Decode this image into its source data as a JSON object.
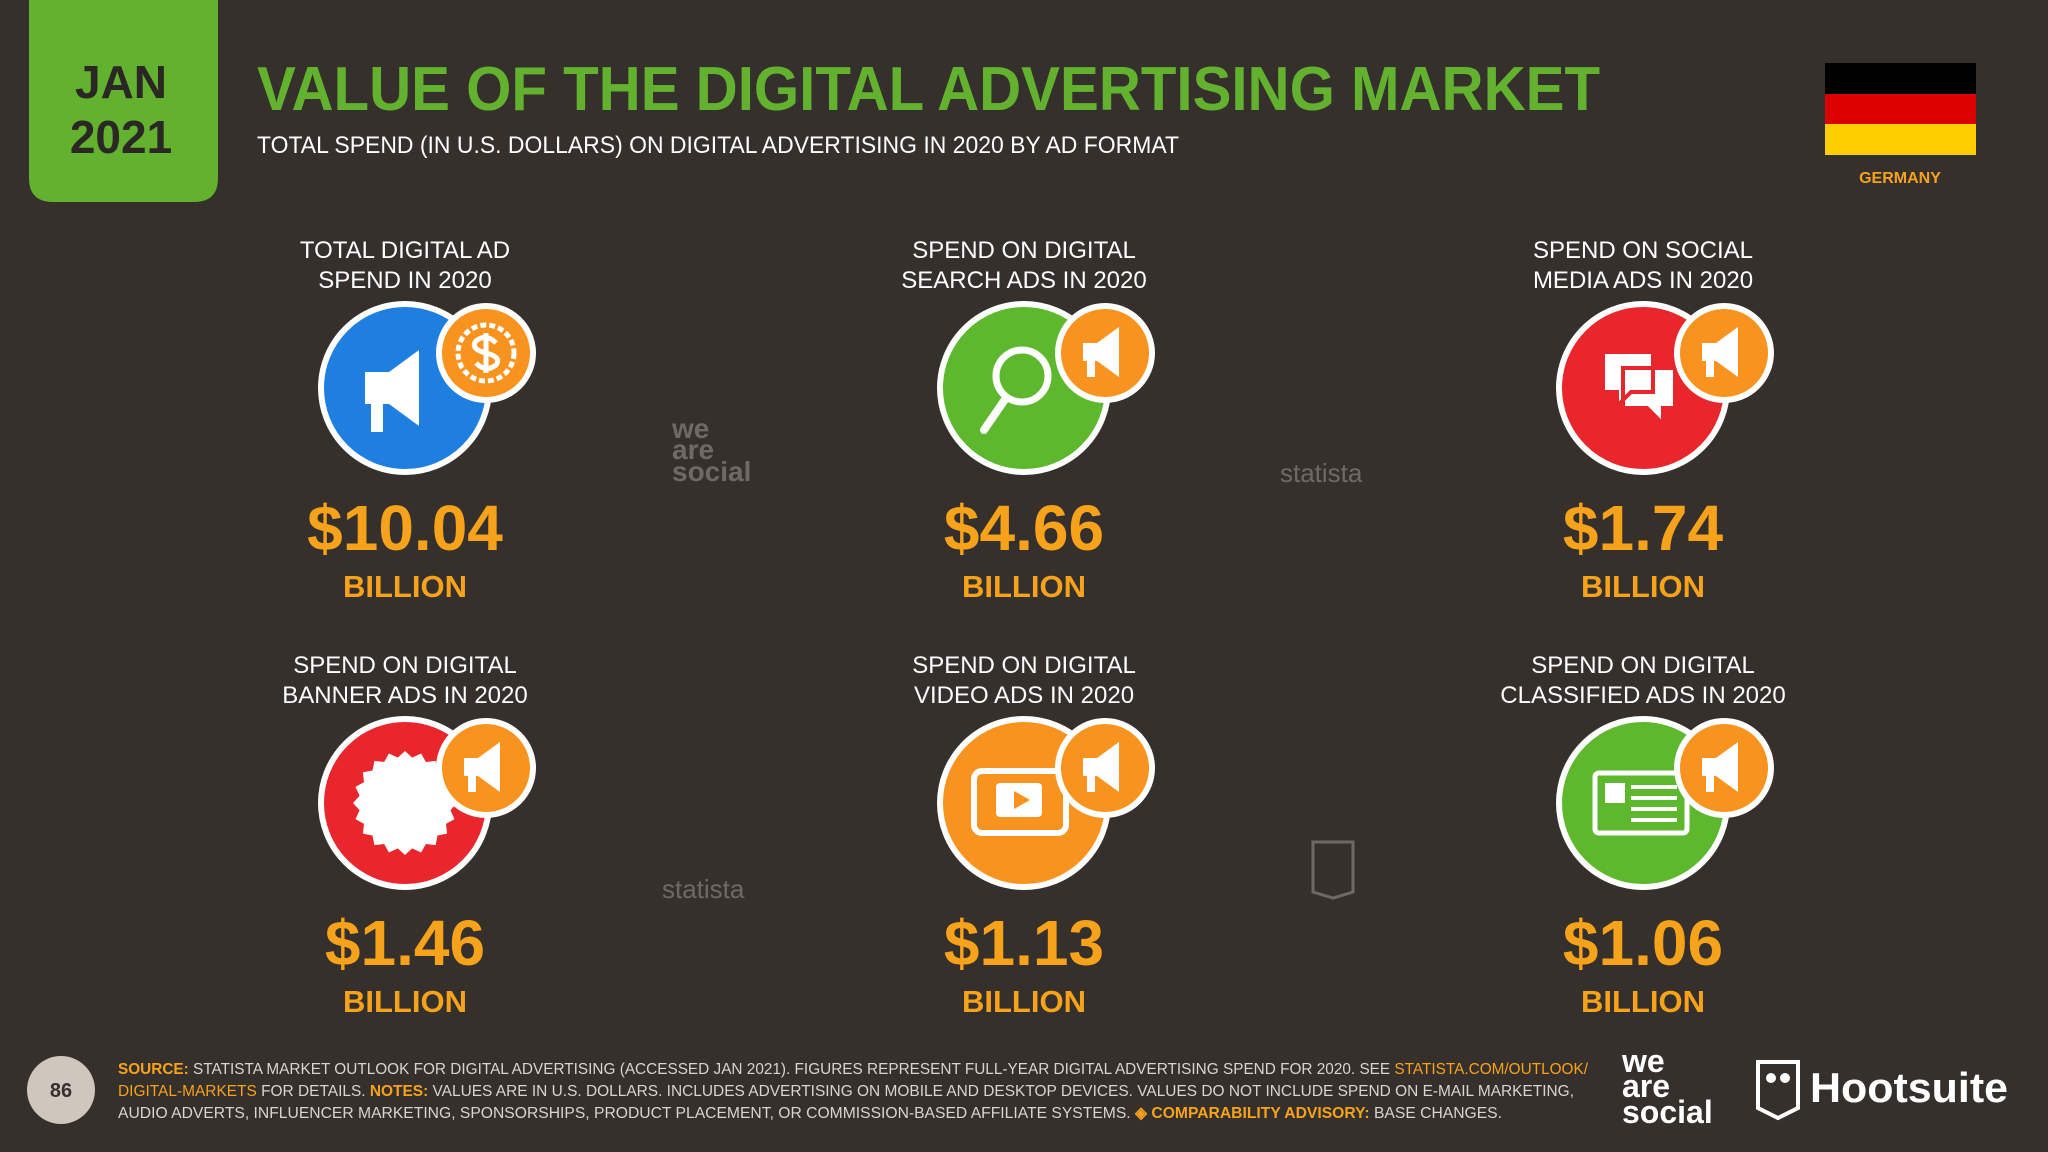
{
  "header": {
    "badge": {
      "month": "JAN",
      "year": "2021"
    },
    "title": "VALUE OF THE DIGITAL ADVERTISING MARKET",
    "subtitle": "TOTAL SPEND (IN U.S. DOLLARS) ON DIGITAL ADVERTISING IN 2020 BY AD FORMAT",
    "country": "GERMANY"
  },
  "tiles": [
    {
      "label": [
        "TOTAL DIGITAL AD",
        "SPEND IN 2020"
      ],
      "value": "$10.04",
      "unit": "BILLION"
    },
    {
      "label": [
        "SPEND ON DIGITAL",
        "SEARCH ADS IN 2020"
      ],
      "value": "$4.66",
      "unit": "BILLION"
    },
    {
      "label": [
        "SPEND ON SOCIAL",
        "MEDIA ADS IN 2020"
      ],
      "value": "$1.74",
      "unit": "BILLION"
    },
    {
      "label": [
        "SPEND ON DIGITAL",
        "BANNER ADS IN 2020"
      ],
      "value": "$1.46",
      "unit": "BILLION"
    },
    {
      "label": [
        "SPEND ON DIGITAL",
        "VIDEO ADS IN 2020"
      ],
      "value": "$1.13",
      "unit": "BILLION"
    },
    {
      "label": [
        "SPEND ON DIGITAL",
        "CLASSIFIED ADS IN 2020"
      ],
      "value": "$1.06",
      "unit": "BILLION"
    }
  ],
  "watermarks": {
    "statista": "statista",
    "wearesocial": [
      "we",
      "are",
      "social"
    ]
  },
  "footer": {
    "page": "86",
    "lines": [
      [
        "SOURCE:",
        " STATISTA MARKET OUTLOOK FOR DIGITAL ADVERTISING (ACCESSED JAN 2021). FIGURES REPRESENT FULL-YEAR DIGITAL ADVERTISING SPEND FOR 2020. SEE ",
        "STATISTA.COM/OUTLOOK/"
      ],
      [
        "DIGITAL-MARKETS",
        " FOR DETAILS. ",
        "NOTES:",
        " VALUES ARE IN U.S. DOLLARS. INCLUDES ADVERTISING ON MOBILE AND DESKTOP DEVICES. VALUES DO NOT INCLUDE SPEND ON E-MAIL MARKETING,"
      ],
      [
        "AUDIO ADVERTS, INFLUENCER MARKETING, SPONSORSHIPS, PRODUCT PLACEMENT, OR COMMISSION-BASED AFFILIATE SYSTEMS. ",
        "◈ COMPARABILITY ADVISORY:",
        " BASE CHANGES."
      ]
    ],
    "logos": {
      "wearesocial": [
        "we",
        "are",
        "social"
      ],
      "hootsuite": "Hootsuite"
    }
  }
}
